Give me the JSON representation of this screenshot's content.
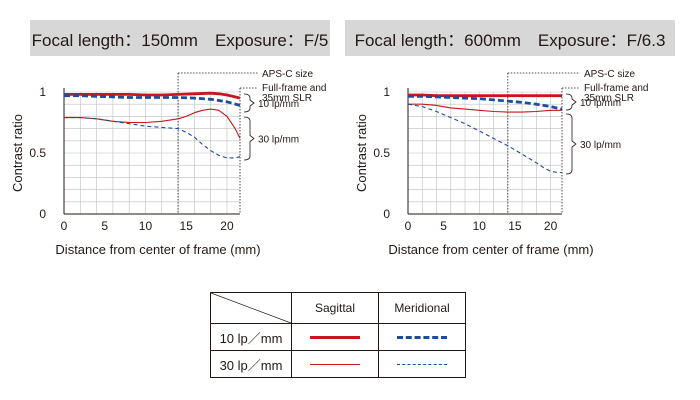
{
  "chart_data": [
    {
      "type": "line",
      "title": "Focal length：150mm　Exposure：F/5",
      "xlabel": "Distance from center of frame (mm)",
      "ylabel": "Contrast ratio",
      "xlim": [
        0,
        21.6
      ],
      "ylim": [
        0,
        1
      ],
      "xticks": [
        "0",
        "5",
        "10",
        "15",
        "20"
      ],
      "yticks": [
        "0",
        "0.5",
        "1"
      ],
      "grid": true,
      "annotations": {
        "apsc": "APS-C size",
        "fullframe": [
          "Full-frame and",
          "35mm SLR"
        ],
        "lp10": "10 lp/mm",
        "lp30": "30 lp/mm"
      },
      "apsc_boundary_x": 14,
      "series": [
        {
          "freq": "10 lp/mm",
          "dir": "Sagittal",
          "color": "#c8161d",
          "x": [
            0,
            2,
            4,
            6,
            8,
            10,
            12,
            14,
            16,
            18,
            19,
            20,
            21,
            21.6
          ],
          "y": [
            0.98,
            0.98,
            0.98,
            0.98,
            0.98,
            0.975,
            0.975,
            0.98,
            0.985,
            0.99,
            0.985,
            0.975,
            0.96,
            0.95
          ]
        },
        {
          "freq": "10 lp/mm",
          "dir": "Meridional",
          "color": "#1d4d9b",
          "x": [
            0,
            2,
            4,
            6,
            8,
            10,
            12,
            14,
            16,
            18,
            20,
            21.6
          ],
          "y": [
            0.97,
            0.97,
            0.965,
            0.96,
            0.955,
            0.955,
            0.955,
            0.955,
            0.95,
            0.94,
            0.92,
            0.89
          ]
        },
        {
          "freq": "30 lp/mm",
          "dir": "Sagittal",
          "color": "#c8161d",
          "x": [
            0,
            2,
            4,
            6,
            8,
            10,
            12,
            14,
            15,
            16,
            17,
            18,
            19,
            20,
            21,
            21.6
          ],
          "y": [
            0.79,
            0.79,
            0.78,
            0.76,
            0.75,
            0.75,
            0.76,
            0.78,
            0.8,
            0.83,
            0.85,
            0.86,
            0.85,
            0.8,
            0.7,
            0.62
          ]
        },
        {
          "freq": "30 lp/mm",
          "dir": "Meridional",
          "color": "#1d4d9b",
          "x": [
            0,
            2,
            4,
            6,
            8,
            10,
            12,
            14,
            15,
            16,
            17,
            18,
            19,
            20,
            21,
            21.6
          ],
          "y": [
            0.79,
            0.79,
            0.78,
            0.76,
            0.74,
            0.72,
            0.71,
            0.7,
            0.67,
            0.63,
            0.57,
            0.52,
            0.48,
            0.46,
            0.46,
            0.47
          ]
        }
      ]
    },
    {
      "type": "line",
      "title": "Focal length：600mm　Exposure：F/6.3",
      "xlabel": "Distance from center of frame (mm)",
      "ylabel": "Contrast ratio",
      "xlim": [
        0,
        21.6
      ],
      "ylim": [
        0,
        1
      ],
      "xticks": [
        "0",
        "5",
        "10",
        "15",
        "20"
      ],
      "yticks": [
        "0",
        "0.5",
        "1"
      ],
      "grid": true,
      "annotations": {
        "apsc": "APS-C size",
        "fullframe": [
          "Full-frame and",
          "35mm SLR"
        ],
        "lp10": "10 lp/mm",
        "lp30": "30 lp/mm"
      },
      "apsc_boundary_x": 14,
      "series": [
        {
          "freq": "10 lp/mm",
          "dir": "Sagittal",
          "color": "#c8161d",
          "x": [
            0,
            2,
            4,
            6,
            8,
            10,
            12,
            14,
            16,
            18,
            20,
            21.6
          ],
          "y": [
            0.975,
            0.975,
            0.97,
            0.97,
            0.97,
            0.97,
            0.97,
            0.97,
            0.97,
            0.97,
            0.97,
            0.97
          ]
        },
        {
          "freq": "10 lp/mm",
          "dir": "Meridional",
          "color": "#1d4d9b",
          "x": [
            0,
            2,
            4,
            6,
            8,
            10,
            12,
            14,
            16,
            18,
            20,
            21.6
          ],
          "y": [
            0.965,
            0.965,
            0.96,
            0.955,
            0.95,
            0.945,
            0.935,
            0.925,
            0.915,
            0.9,
            0.88,
            0.86
          ]
        },
        {
          "freq": "30 lp/mm",
          "dir": "Sagittal",
          "color": "#c8161d",
          "x": [
            0,
            2,
            4,
            6,
            8,
            10,
            12,
            14,
            16,
            18,
            20,
            21.6
          ],
          "y": [
            0.9,
            0.9,
            0.89,
            0.87,
            0.86,
            0.85,
            0.84,
            0.835,
            0.835,
            0.84,
            0.85,
            0.85
          ]
        },
        {
          "freq": "30 lp/mm",
          "dir": "Meridional",
          "color": "#1d4d9b",
          "x": [
            0,
            2,
            4,
            6,
            8,
            10,
            12,
            14,
            16,
            18,
            19,
            20,
            21,
            21.6
          ],
          "y": [
            0.9,
            0.88,
            0.84,
            0.79,
            0.74,
            0.68,
            0.62,
            0.56,
            0.49,
            0.42,
            0.38,
            0.35,
            0.34,
            0.34
          ]
        }
      ]
    }
  ],
  "legend": {
    "headers": [
      "Sagittal",
      "Meridional"
    ],
    "rows": [
      {
        "label": "10 lp／mm",
        "sag_color": "#c8161d",
        "mer_color": "#1d4d9b"
      },
      {
        "label": "30 lp／mm",
        "sag_color": "#c8161d",
        "mer_color": "#1d4d9b"
      }
    ]
  }
}
